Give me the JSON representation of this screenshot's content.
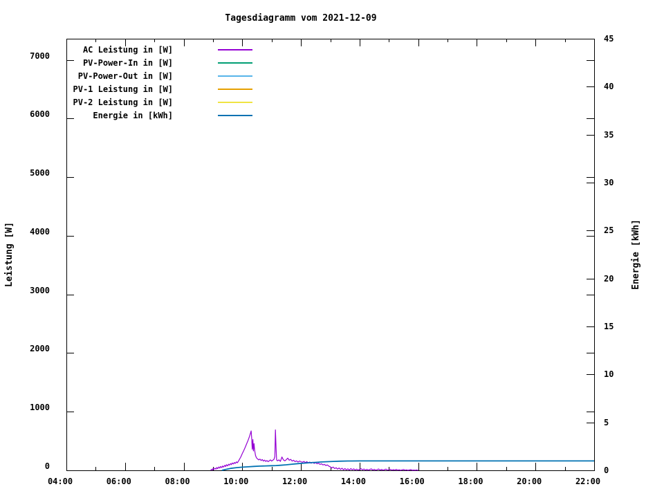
{
  "window": {
    "background": "#ffffff",
    "foreground": "#000000"
  },
  "chart_data": {
    "type": "line",
    "title": "Tagesdiagramm vom 2021-12-09",
    "ylabel": "Leistung [W]",
    "y2label": "Energie [kWh]",
    "grid": false,
    "legend_position": "top-left-inside",
    "x_axis": {
      "kind": "time-of-day",
      "start_hour": 4,
      "end_hour": 22,
      "major_tick_every_hours": 2,
      "minor_tick_every_hours": 1,
      "tick_labels": [
        "04:00",
        "06:00",
        "08:00",
        "10:00",
        "12:00",
        "14:00",
        "16:00",
        "18:00",
        "20:00",
        "22:00"
      ]
    },
    "y_axis": {
      "label": "Leistung [W]",
      "min": 0,
      "max_visible_tick": 7000,
      "range_max": 7358,
      "tick_step": 1000,
      "tick_labels": [
        "0",
        "1000",
        "2000",
        "3000",
        "4000",
        "5000",
        "6000",
        "7000"
      ]
    },
    "y2_axis": {
      "label": "Energie [kWh]",
      "min": 0,
      "max": 45,
      "tick_step": 5,
      "tick_labels": [
        "0",
        "5",
        "10",
        "15",
        "20",
        "25",
        "30",
        "35",
        "40",
        "45"
      ]
    },
    "series": [
      {
        "name": "AC Leistung in [W]",
        "color": "#9400d3",
        "axis": "y",
        "width": 1.2,
        "points": [
          [
            8.92,
            0
          ],
          [
            8.95,
            18
          ],
          [
            8.98,
            5
          ],
          [
            9.0,
            30
          ],
          [
            9.03,
            12
          ],
          [
            9.06,
            38
          ],
          [
            9.1,
            20
          ],
          [
            9.13,
            48
          ],
          [
            9.16,
            28
          ],
          [
            9.2,
            58
          ],
          [
            9.23,
            38
          ],
          [
            9.26,
            66
          ],
          [
            9.3,
            46
          ],
          [
            9.33,
            74
          ],
          [
            9.36,
            55
          ],
          [
            9.4,
            85
          ],
          [
            9.43,
            65
          ],
          [
            9.46,
            95
          ],
          [
            9.5,
            75
          ],
          [
            9.53,
            105
          ],
          [
            9.56,
            88
          ],
          [
            9.6,
            115
          ],
          [
            9.63,
            98
          ],
          [
            9.66,
            125
          ],
          [
            9.7,
            108
          ],
          [
            9.73,
            135
          ],
          [
            9.76,
            118
          ],
          [
            9.8,
            145
          ],
          [
            9.83,
            128
          ],
          [
            9.86,
            150
          ],
          [
            9.9,
            185
          ],
          [
            9.95,
            230
          ],
          [
            10.0,
            285
          ],
          [
            10.05,
            340
          ],
          [
            10.1,
            395
          ],
          [
            10.15,
            455
          ],
          [
            10.2,
            515
          ],
          [
            10.25,
            585
          ],
          [
            10.3,
            672
          ],
          [
            10.32,
            545
          ],
          [
            10.34,
            360
          ],
          [
            10.36,
            525
          ],
          [
            10.38,
            330
          ],
          [
            10.4,
            455
          ],
          [
            10.42,
            345
          ],
          [
            10.45,
            255
          ],
          [
            10.48,
            215
          ],
          [
            10.52,
            195
          ],
          [
            10.56,
            178
          ],
          [
            10.6,
            192
          ],
          [
            10.64,
            168
          ],
          [
            10.68,
            184
          ],
          [
            10.72,
            158
          ],
          [
            10.76,
            174
          ],
          [
            10.8,
            152
          ],
          [
            10.84,
            168
          ],
          [
            10.88,
            148
          ],
          [
            10.92,
            162
          ],
          [
            10.96,
            178
          ],
          [
            11.0,
            158
          ],
          [
            11.04,
            172
          ],
          [
            11.08,
            188
          ],
          [
            11.11,
            235
          ],
          [
            11.13,
            690
          ],
          [
            11.15,
            395
          ],
          [
            11.17,
            178
          ],
          [
            11.2,
            162
          ],
          [
            11.25,
            178
          ],
          [
            11.3,
            152
          ],
          [
            11.35,
            228
          ],
          [
            11.4,
            178
          ],
          [
            11.45,
            162
          ],
          [
            11.5,
            182
          ],
          [
            11.55,
            208
          ],
          [
            11.6,
            172
          ],
          [
            11.65,
            188
          ],
          [
            11.7,
            158
          ],
          [
            11.75,
            172
          ],
          [
            11.8,
            148
          ],
          [
            11.85,
            162
          ],
          [
            11.9,
            142
          ],
          [
            11.95,
            158
          ],
          [
            12.0,
            148
          ],
          [
            12.05,
            138
          ],
          [
            12.1,
            152
          ],
          [
            12.15,
            132
          ],
          [
            12.2,
            148
          ],
          [
            12.25,
            128
          ],
          [
            12.3,
            142
          ],
          [
            12.35,
            122
          ],
          [
            12.4,
            138
          ],
          [
            12.45,
            118
          ],
          [
            12.5,
            132
          ],
          [
            12.55,
            112
          ],
          [
            12.6,
            122
          ],
          [
            12.65,
            102
          ],
          [
            12.7,
            112
          ],
          [
            12.75,
            92
          ],
          [
            12.8,
            102
          ],
          [
            12.85,
            82
          ],
          [
            12.9,
            92
          ],
          [
            12.95,
            72
          ],
          [
            13.0,
            60
          ],
          [
            13.05,
            40
          ],
          [
            13.1,
            55
          ],
          [
            13.15,
            30
          ],
          [
            13.2,
            45
          ],
          [
            13.25,
            20
          ],
          [
            13.3,
            40
          ],
          [
            13.35,
            15
          ],
          [
            13.4,
            35
          ],
          [
            13.45,
            10
          ],
          [
            13.5,
            30
          ],
          [
            13.55,
            8
          ],
          [
            13.6,
            25
          ],
          [
            13.65,
            5
          ],
          [
            13.7,
            30
          ],
          [
            13.75,
            10
          ],
          [
            13.8,
            25
          ],
          [
            13.85,
            5
          ],
          [
            13.9,
            20
          ],
          [
            13.95,
            3
          ],
          [
            14.0,
            15
          ],
          [
            14.05,
            28
          ],
          [
            14.1,
            8
          ],
          [
            14.15,
            22
          ],
          [
            14.2,
            4
          ],
          [
            14.25,
            18
          ],
          [
            14.3,
            2
          ],
          [
            14.35,
            15
          ],
          [
            14.4,
            25
          ],
          [
            14.45,
            5
          ],
          [
            14.5,
            18
          ],
          [
            14.55,
            2
          ],
          [
            14.6,
            12
          ],
          [
            14.65,
            22
          ],
          [
            14.7,
            4
          ],
          [
            14.75,
            15
          ],
          [
            14.8,
            2
          ],
          [
            14.85,
            12
          ],
          [
            14.9,
            20
          ],
          [
            14.95,
            3
          ],
          [
            15.0,
            10
          ],
          [
            15.05,
            18
          ],
          [
            15.1,
            2
          ],
          [
            15.15,
            12
          ],
          [
            15.2,
            4
          ],
          [
            15.25,
            15
          ],
          [
            15.3,
            2
          ],
          [
            15.35,
            10
          ],
          [
            15.4,
            1
          ],
          [
            15.45,
            8
          ],
          [
            15.5,
            14
          ],
          [
            15.55,
            2
          ],
          [
            15.6,
            8
          ],
          [
            15.65,
            1
          ],
          [
            15.7,
            6
          ],
          [
            15.75,
            12
          ],
          [
            15.8,
            1
          ],
          [
            15.85,
            5
          ],
          [
            15.9,
            2
          ],
          [
            15.95,
            6
          ],
          [
            16.0,
            0
          ]
        ]
      },
      {
        "name": "PV-Power-In in [W]",
        "color": "#009e73",
        "axis": "y",
        "width": 1.2,
        "points": []
      },
      {
        "name": "PV-Power-Out in [W]",
        "color": "#56b4e9",
        "axis": "y",
        "width": 1.2,
        "points": []
      },
      {
        "name": "PV-1 Leistung in [W]",
        "color": "#e69f00",
        "axis": "y",
        "width": 1.2,
        "points": []
      },
      {
        "name": "PV-2 Leistung in [W]",
        "color": "#f0e442",
        "axis": "y",
        "width": 1.2,
        "points": []
      },
      {
        "name": "Energie in [kWh]",
        "color": "#0072b2",
        "axis": "y2",
        "width": 1.8,
        "points": [
          [
            9.3,
            0
          ],
          [
            9.4,
            0.07
          ],
          [
            9.5,
            0.14
          ],
          [
            9.6,
            0.2
          ],
          [
            9.8,
            0.28
          ],
          [
            10.0,
            0.33
          ],
          [
            10.2,
            0.37
          ],
          [
            10.4,
            0.41
          ],
          [
            10.6,
            0.44
          ],
          [
            10.8,
            0.46
          ],
          [
            11.0,
            0.48
          ],
          [
            11.15,
            0.5
          ],
          [
            11.3,
            0.53
          ],
          [
            11.5,
            0.58
          ],
          [
            11.7,
            0.64
          ],
          [
            11.9,
            0.7
          ],
          [
            12.1,
            0.75
          ],
          [
            12.3,
            0.79
          ],
          [
            12.5,
            0.83
          ],
          [
            12.7,
            0.87
          ],
          [
            12.9,
            0.9
          ],
          [
            13.1,
            0.93
          ],
          [
            13.3,
            0.95
          ],
          [
            13.6,
            0.97
          ],
          [
            14.0,
            0.98
          ],
          [
            22.0,
            0.98
          ]
        ]
      }
    ]
  }
}
